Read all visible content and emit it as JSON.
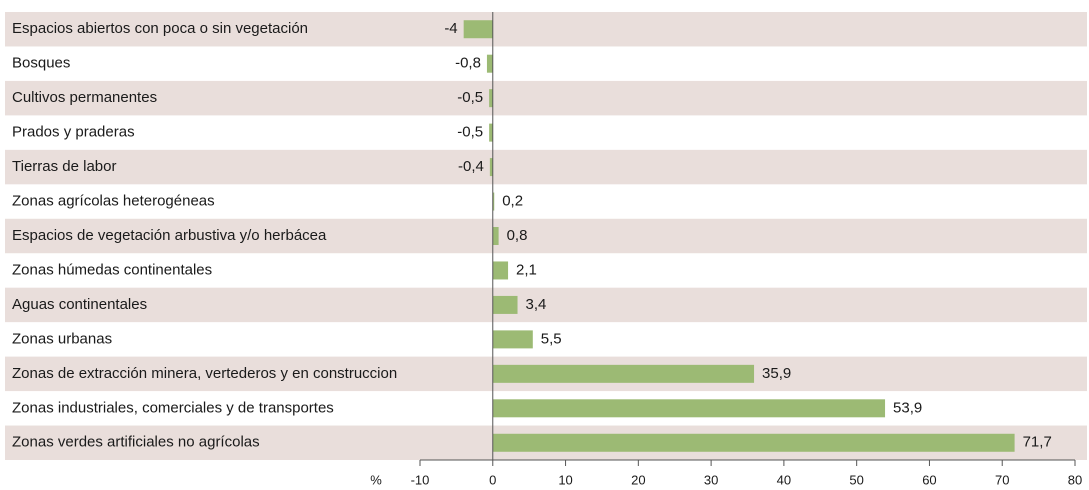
{
  "chart_data": {
    "type": "bar",
    "orientation": "horizontal",
    "categories": [
      "Espacios abiertos con poca o sin vegetación",
      "Bosques",
      "Cultivos permanentes",
      "Prados y praderas",
      "Tierras de labor",
      "Zonas agrícolas heterogéneas",
      "Espacios de vegetación arbustiva y/o herbácea",
      "Zonas húmedas continentales",
      "Aguas continentales",
      "Zonas urbanas",
      "Zonas de extracción minera, vertederos y en construccion",
      "Zonas industriales, comerciales y de transportes",
      "Zonas verdes artificiales no agrícolas"
    ],
    "values": [
      -4,
      -0.8,
      -0.5,
      -0.5,
      -0.4,
      0.2,
      0.8,
      2.1,
      3.4,
      5.5,
      35.9,
      53.9,
      71.7
    ],
    "value_labels": [
      "-4",
      "-0,8",
      "-0,5",
      "-0,5",
      "-0,4",
      "0,2",
      "0,8",
      "2,1",
      "3,4",
      "5,5",
      "35,9",
      "53,9",
      "71,7"
    ],
    "color": "#9cba74",
    "row_color": "#e9dedb",
    "xlabel": "%",
    "xlim": [
      -10,
      80
    ],
    "xticks": [
      -10,
      0,
      10,
      20,
      30,
      40,
      50,
      60,
      70,
      80
    ]
  }
}
